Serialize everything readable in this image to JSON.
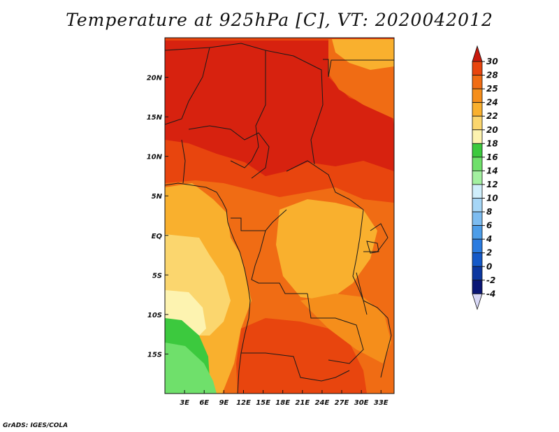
{
  "title": "Temperature at 925hPa [C], VT: 2020042012",
  "credit": "GrADS: IGES/COLA",
  "map": {
    "lon_labels": [
      "3E",
      "6E",
      "9E",
      "12E",
      "15E",
      "18E",
      "21E",
      "24E",
      "27E",
      "30E",
      "33E"
    ],
    "lon_values": [
      3,
      6,
      9,
      12,
      15,
      18,
      21,
      24,
      27,
      30,
      33
    ],
    "lat_labels": [
      "20N",
      "15N",
      "10N",
      "5N",
      "EQ",
      "5S",
      "10S",
      "15S"
    ],
    "lat_values": [
      20,
      15,
      10,
      5,
      0,
      -5,
      -10,
      -15
    ],
    "extent": {
      "lon_min": 0,
      "lon_max": 35,
      "lat_min": -20,
      "lat_max": 25
    }
  },
  "colorbar": {
    "levels": [
      "30",
      "28",
      "25",
      "24",
      "22",
      "20",
      "18",
      "16",
      "14",
      "12",
      "10",
      "8",
      "6",
      "4",
      "2",
      "0",
      "-2",
      "-4"
    ],
    "colors": [
      "#d7220f",
      "#e8450e",
      "#f06c14",
      "#f58e1b",
      "#f9b02e",
      "#fbd66e",
      "#fdf3b0",
      "#3cc93e",
      "#6fe06b",
      "#a3f0a0",
      "#cfeefb",
      "#a6d6f6",
      "#7dbcf0",
      "#4d9de8",
      "#2a7be0",
      "#1559c8",
      "#0c37a0",
      "#0a1675"
    ],
    "top_arrow_color": "#c81a0d",
    "bottom_arrow_color": "#d8d8f6"
  }
}
